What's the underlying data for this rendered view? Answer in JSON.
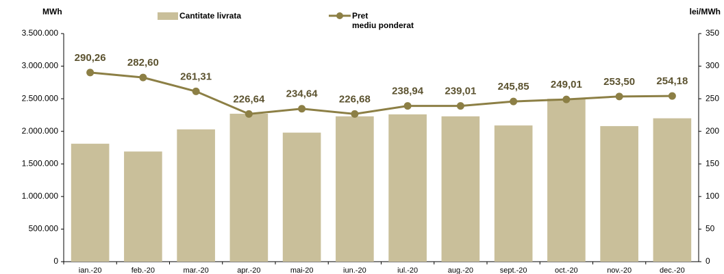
{
  "chart_data": {
    "type": "bar-line",
    "y_label": "MWh",
    "y2_label": "lei/MWh",
    "categories": [
      "ian.-20",
      "feb.-20",
      "mar.-20",
      "apr.-20",
      "mai-20",
      "iun.-20",
      "iul.-20",
      "aug.-20",
      "sept.-20",
      "oct.-20",
      "nov.-20",
      "dec.-20"
    ],
    "series": [
      {
        "name": "Cantitate livrata",
        "type": "bar",
        "color": "#c9bf9a",
        "values": [
          1810000,
          1690000,
          2030000,
          2270000,
          1980000,
          2230000,
          2260000,
          2230000,
          2090000,
          2500000,
          2080000,
          2200000
        ]
      },
      {
        "name": "Pret\nmediu ponderat",
        "type": "line",
        "axis": "y2",
        "color": "#8c7f45",
        "values": [
          290.26,
          282.6,
          261.31,
          226.64,
          234.64,
          226.68,
          238.94,
          239.01,
          245.85,
          249.01,
          253.5,
          254.18
        ],
        "value_labels": [
          "290,26",
          "282,60",
          "261,31",
          "226,64",
          "234,64",
          "226,68",
          "238,94",
          "239,01",
          "245,85",
          "249,01",
          "253,50",
          "254,18"
        ]
      }
    ],
    "ylim": [
      0,
      3500000
    ],
    "yticks": [
      {
        "value": 0,
        "label": "0"
      },
      {
        "value": 500000,
        "label": "500.000"
      },
      {
        "value": 1000000,
        "label": "1.000.000"
      },
      {
        "value": 1500000,
        "label": "1.500.000"
      },
      {
        "value": 2000000,
        "label": "2.000.000"
      },
      {
        "value": 2500000,
        "label": "2.500.000"
      },
      {
        "value": 3000000,
        "label": "3.000.000"
      },
      {
        "value": 3500000,
        "label": "3.500.000"
      }
    ],
    "y2lim": [
      0,
      350
    ],
    "y2ticks": [
      0,
      50,
      100,
      150,
      200,
      250,
      300,
      350
    ]
  }
}
